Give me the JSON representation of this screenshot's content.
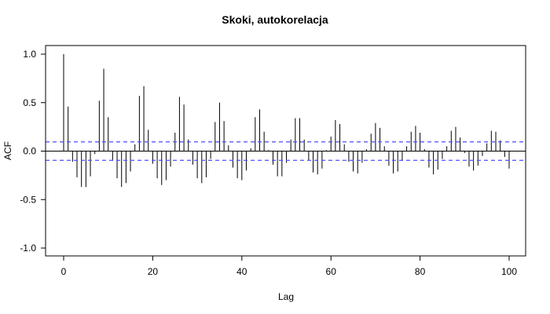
{
  "chart_data": {
    "type": "bar",
    "title": "Skoki, autokorelacja",
    "xlabel": "Lag",
    "ylabel": "ACF",
    "xlim": [
      0,
      100
    ],
    "ylim": [
      -1.0,
      1.0
    ],
    "x_ticks": [
      "0",
      "20",
      "40",
      "60",
      "80",
      "100"
    ],
    "y_ticks": [
      "-1.0",
      "-0.5",
      "0.0",
      "0.5",
      "1.0"
    ],
    "confidence_bounds": [
      0.095,
      -0.095
    ],
    "confidence_color": "#4d4dff",
    "lag_step": 1,
    "values": [
      1.0,
      0.46,
      -0.11,
      -0.27,
      -0.37,
      -0.37,
      -0.26,
      -0.03,
      0.52,
      0.85,
      0.35,
      -0.1,
      -0.28,
      -0.37,
      -0.33,
      -0.21,
      0.07,
      0.57,
      0.67,
      0.22,
      -0.13,
      -0.28,
      -0.35,
      -0.3,
      -0.16,
      0.19,
      0.56,
      0.48,
      0.12,
      -0.14,
      -0.28,
      -0.33,
      -0.27,
      -0.08,
      0.3,
      0.5,
      0.31,
      0.06,
      -0.17,
      -0.28,
      -0.3,
      -0.2,
      0.03,
      0.35,
      0.43,
      0.2,
      0.01,
      -0.14,
      -0.26,
      -0.26,
      -0.12,
      0.12,
      0.34,
      0.34,
      0.12,
      -0.09,
      -0.22,
      -0.24,
      -0.18,
      0.01,
      0.15,
      0.32,
      0.28,
      0.07,
      -0.11,
      -0.21,
      -0.23,
      -0.12,
      0.02,
      0.18,
      0.29,
      0.24,
      0.05,
      -0.15,
      -0.23,
      -0.21,
      -0.1,
      0.05,
      0.2,
      0.26,
      0.19,
      0.02,
      -0.17,
      -0.24,
      -0.19,
      -0.08,
      0.05,
      0.21,
      0.25,
      0.14,
      -0.02,
      -0.16,
      -0.2,
      -0.15,
      -0.05,
      0.08,
      0.21,
      0.2,
      0.11,
      -0.06,
      -0.18
    ]
  }
}
